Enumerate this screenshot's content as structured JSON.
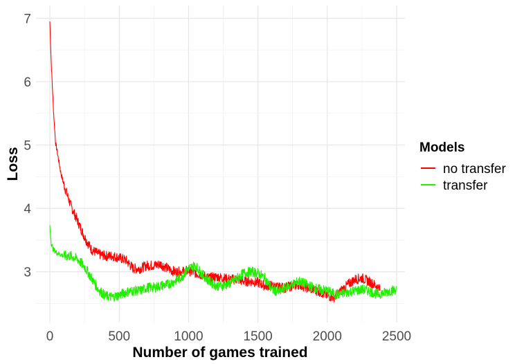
{
  "chart_data": {
    "type": "line",
    "title": "",
    "xlabel": "Number of games trained",
    "ylabel": "Loss",
    "xlim": [
      -100,
      2560
    ],
    "ylim": [
      2.2,
      7.2
    ],
    "x_ticks": [
      0,
      500,
      1000,
      1500,
      2000,
      2500
    ],
    "y_ticks": [
      3,
      4,
      5,
      6,
      7
    ],
    "grid": true,
    "legend": {
      "title": "Models",
      "position": "right"
    },
    "series": [
      {
        "name": "no transfer",
        "color": "#ff0000",
        "x_max": 2380,
        "x": [
          0,
          10,
          25,
          40,
          60,
          80,
          100,
          150,
          200,
          250,
          300,
          350,
          400,
          450,
          500,
          550,
          600,
          650,
          700,
          750,
          800,
          850,
          900,
          950,
          1000,
          1050,
          1100,
          1150,
          1200,
          1250,
          1300,
          1350,
          1400,
          1450,
          1500,
          1550,
          1600,
          1650,
          1700,
          1750,
          1800,
          1850,
          1900,
          1950,
          2000,
          2050,
          2100,
          2150,
          2200,
          2250,
          2300,
          2350,
          2380
        ],
        "y": [
          6.95,
          6.3,
          5.6,
          5.05,
          4.8,
          4.55,
          4.38,
          4.05,
          3.8,
          3.55,
          3.35,
          3.28,
          3.25,
          3.25,
          3.22,
          3.18,
          3.05,
          3.05,
          3.1,
          3.1,
          3.12,
          3.05,
          3.0,
          3.0,
          3.02,
          2.98,
          2.95,
          2.9,
          2.92,
          2.9,
          2.88,
          2.88,
          2.85,
          2.85,
          2.83,
          2.78,
          2.78,
          2.75,
          2.75,
          2.78,
          2.8,
          2.75,
          2.72,
          2.68,
          2.62,
          2.6,
          2.7,
          2.8,
          2.88,
          2.9,
          2.85,
          2.78,
          2.72
        ]
      },
      {
        "name": "transfer",
        "color": "#22ee00",
        "x_max": 2500,
        "x": [
          0,
          10,
          25,
          50,
          100,
          150,
          200,
          250,
          300,
          350,
          400,
          450,
          500,
          550,
          600,
          650,
          700,
          750,
          800,
          850,
          900,
          950,
          1000,
          1050,
          1100,
          1150,
          1200,
          1250,
          1300,
          1350,
          1400,
          1450,
          1500,
          1550,
          1600,
          1650,
          1700,
          1750,
          1800,
          1850,
          1900,
          1950,
          2000,
          2050,
          2100,
          2150,
          2200,
          2250,
          2300,
          2350,
          2400,
          2450,
          2500
        ],
        "y": [
          3.72,
          3.45,
          3.35,
          3.3,
          3.25,
          3.25,
          3.2,
          3.08,
          2.9,
          2.72,
          2.62,
          2.6,
          2.63,
          2.68,
          2.7,
          2.7,
          2.75,
          2.75,
          2.78,
          2.8,
          2.85,
          2.92,
          3.05,
          3.1,
          2.95,
          2.85,
          2.78,
          2.78,
          2.82,
          2.9,
          2.98,
          3.0,
          2.98,
          2.9,
          2.72,
          2.68,
          2.75,
          2.8,
          2.85,
          2.8,
          2.75,
          2.72,
          2.7,
          2.65,
          2.65,
          2.68,
          2.7,
          2.72,
          2.7,
          2.65,
          2.66,
          2.7,
          2.72
        ]
      }
    ]
  }
}
